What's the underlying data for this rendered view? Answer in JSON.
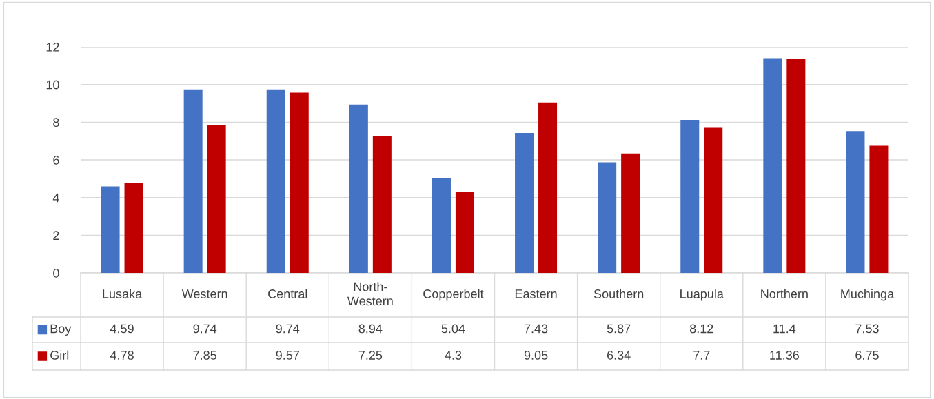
{
  "chart_data": {
    "type": "bar",
    "categories": [
      "Lusaka",
      "Western",
      "Central",
      "North-\nWestern",
      "Copperbelt",
      "Eastern",
      "Southern",
      "Luapula",
      "Northern",
      "Muchinga"
    ],
    "series": [
      {
        "name": "Boy",
        "color": "#4472c4",
        "values": [
          4.59,
          9.74,
          9.74,
          8.94,
          5.04,
          7.43,
          5.87,
          8.12,
          11.4,
          7.53
        ]
      },
      {
        "name": "Girl",
        "color": "#c00000",
        "values": [
          4.78,
          7.85,
          9.57,
          7.25,
          4.3,
          9.05,
          6.34,
          7.7,
          11.36,
          6.75
        ]
      }
    ],
    "ylim": [
      0,
      12
    ],
    "yticks": [
      0,
      2,
      4,
      6,
      8,
      10,
      12
    ],
    "grid": "y",
    "data_labels": true,
    "legend": "bottom left"
  }
}
